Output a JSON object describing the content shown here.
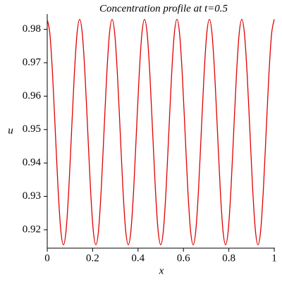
{
  "chart_data": {
    "type": "line",
    "title": "Concentration profile at t=0.5",
    "xlabel": "x",
    "ylabel": "u",
    "x": [
      0,
      0.0119,
      0.0238,
      0.0357,
      0.0476,
      0.0595,
      0.0714,
      0.0833,
      0.0952,
      0.1071,
      0.119,
      0.131,
      0.1429,
      0.1548,
      0.1667,
      0.1786,
      0.1905,
      0.2024,
      0.2143,
      0.2262,
      0.2381,
      0.25,
      0.2619,
      0.2738,
      0.2857,
      0.2976,
      0.3095,
      0.3214,
      0.3333,
      0.3452,
      0.3571,
      0.369,
      0.381,
      0.3929,
      0.4048,
      0.4167,
      0.4286,
      0.4405,
      0.4524,
      0.4643,
      0.4762,
      0.4881,
      0.5,
      0.5119,
      0.5238,
      0.5357,
      0.5476,
      0.5595,
      0.5714,
      0.5833,
      0.5952,
      0.6071,
      0.619,
      0.631,
      0.6429,
      0.6548,
      0.6667,
      0.6786,
      0.6905,
      0.7024,
      0.7143,
      0.7262,
      0.7381,
      0.75,
      0.7619,
      0.7738,
      0.7857,
      0.7976,
      0.8095,
      0.8214,
      0.8333,
      0.8452,
      0.8571,
      0.869,
      0.881,
      0.8929,
      0.9048,
      0.9167,
      0.9286,
      0.9405,
      0.9524,
      0.9643,
      0.9762,
      0.9881,
      1
    ],
    "series": [
      {
        "name": "u",
        "color": "#e00000",
        "values": [
          0.983,
          0.9785,
          0.9661,
          0.9493,
          0.9324,
          0.92,
          0.9155,
          0.92,
          0.9324,
          0.9493,
          0.9661,
          0.9785,
          0.983,
          0.9785,
          0.9661,
          0.9493,
          0.9324,
          0.92,
          0.9155,
          0.92,
          0.9324,
          0.9493,
          0.9661,
          0.9785,
          0.983,
          0.9785,
          0.9661,
          0.9493,
          0.9324,
          0.92,
          0.9155,
          0.92,
          0.9324,
          0.9493,
          0.9661,
          0.9785,
          0.983,
          0.9785,
          0.9661,
          0.9493,
          0.9324,
          0.92,
          0.9155,
          0.92,
          0.9324,
          0.9493,
          0.9661,
          0.9785,
          0.983,
          0.9785,
          0.9661,
          0.9493,
          0.9324,
          0.92,
          0.9155,
          0.92,
          0.9324,
          0.9493,
          0.9661,
          0.9785,
          0.983,
          0.9785,
          0.9661,
          0.9493,
          0.9324,
          0.92,
          0.9155,
          0.92,
          0.9324,
          0.9493,
          0.9661,
          0.9785,
          0.983,
          0.9785,
          0.9661,
          0.9493,
          0.9324,
          0.92,
          0.9155,
          0.92,
          0.9324,
          0.9493,
          0.9661,
          0.9785,
          0.983
        ]
      }
    ],
    "xlim": [
      0,
      1
    ],
    "ylim": [
      0.9145,
      0.9835
    ],
    "xticks": [
      0,
      0.2,
      0.4,
      0.6,
      0.8,
      1
    ],
    "yticks": [
      0.92,
      0.93,
      0.94,
      0.95,
      0.96,
      0.97,
      0.98
    ]
  }
}
